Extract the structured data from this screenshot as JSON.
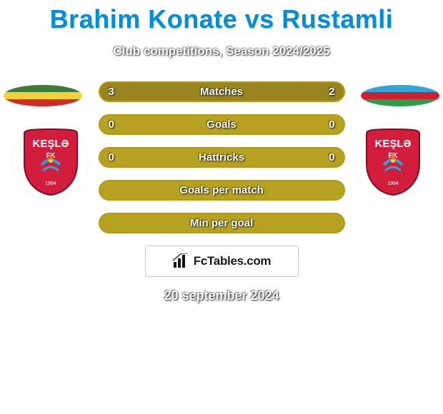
{
  "title": "Brahim Konate vs Rustamli",
  "subtitle": "Club competitions, Season 2024/2025",
  "date": "20 september 2024",
  "brand": "FcTables.com",
  "colors": {
    "title": "#008fd6",
    "bar_border": "#b09a1f",
    "bar_fill": "#988520",
    "bar_bg": "#b7a121",
    "badge_primary": "#d21e3c",
    "badge_text": "#ffffff",
    "flag_left_top": "#3e7a3a",
    "flag_left_mid": "#f6d03a",
    "flag_left_bot": "#cf2a2a",
    "flag_right_top": "#2fa8d8",
    "flag_right_mid": "#d0202e",
    "flag_right_bot": "#2e9b4d"
  },
  "club_badge_text": "KEŞLƏ",
  "bars": [
    {
      "label": "Matches",
      "left": "3",
      "right": "2",
      "left_pct": 60,
      "right_pct": 40
    },
    {
      "label": "Goals",
      "left": "0",
      "right": "0",
      "left_pct": 0,
      "right_pct": 0
    },
    {
      "label": "Hattricks",
      "left": "0",
      "right": "0",
      "left_pct": 0,
      "right_pct": 0
    },
    {
      "label": "Goals per match",
      "left": "",
      "right": "",
      "left_pct": 0,
      "right_pct": 0
    },
    {
      "label": "Min per goal",
      "left": "",
      "right": "",
      "left_pct": 0,
      "right_pct": 0
    }
  ]
}
